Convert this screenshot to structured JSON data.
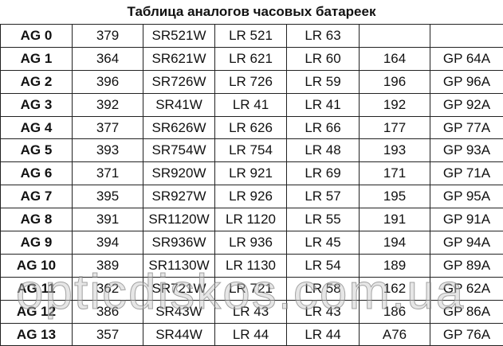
{
  "title": "Таблица аналогов часовых батареек",
  "watermark": "opticdiskos.com.ua",
  "rows": [
    [
      "AG 0",
      "379",
      "SR521W",
      "LR 521",
      "LR 63",
      "",
      ""
    ],
    [
      "AG 1",
      "364",
      "SR621W",
      "LR 621",
      "LR 60",
      "164",
      "GP 64A"
    ],
    [
      "AG 2",
      "396",
      "SR726W",
      "LR 726",
      "LR 59",
      "196",
      "GP 96A"
    ],
    [
      "AG 3",
      "392",
      "SR41W",
      "LR 41",
      "LR 41",
      "192",
      "GP 92A"
    ],
    [
      "AG 4",
      "377",
      "SR626W",
      "LR 626",
      "LR 66",
      "177",
      "GP 77A"
    ],
    [
      "AG 5",
      "393",
      "SR754W",
      "LR 754",
      "LR 48",
      "193",
      "GP 93A"
    ],
    [
      "AG 6",
      "371",
      "SR920W",
      "LR 921",
      "LR 69",
      "171",
      "GP 71A"
    ],
    [
      "AG 7",
      "395",
      "SR927W",
      "LR 926",
      "LR 57",
      "195",
      "GP 95A"
    ],
    [
      "AG 8",
      "391",
      "SR1120W",
      "LR 1120",
      "LR 55",
      "191",
      "GP 91A"
    ],
    [
      "AG 9",
      "394",
      "SR936W",
      "LR 936",
      "LR 45",
      "194",
      "GP 94A"
    ],
    [
      "AG 10",
      "389",
      "SR1130W",
      "LR 1130",
      "LR 54",
      "189",
      "GP 89A"
    ],
    [
      "AG 11",
      "362",
      "SR721W",
      "LR 721",
      "LR 58",
      "162",
      "GP 62A"
    ],
    [
      "AG 12",
      "386",
      "SR43W",
      "LR 43",
      "LR 43",
      "186",
      "GP 86A"
    ],
    [
      "AG 13",
      "357",
      "SR44W",
      "LR 44",
      "LR 44",
      "A76",
      "GP 76A"
    ]
  ]
}
